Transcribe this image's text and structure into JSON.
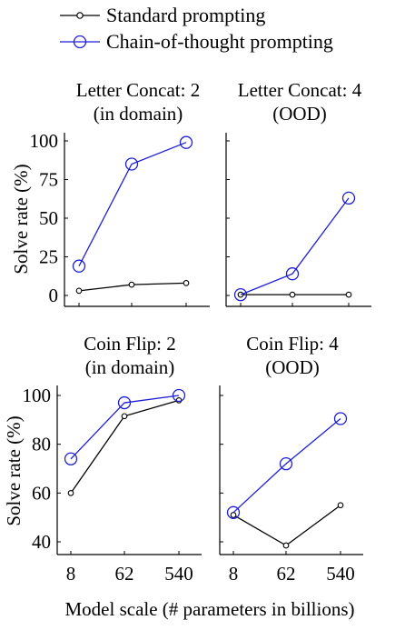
{
  "legend": [
    {
      "label": "Standard prompting",
      "color": "#000000",
      "marker": "small-circle"
    },
    {
      "label": "Chain-of-thought prompting",
      "color": "#1f1fd6",
      "marker": "large-circle"
    }
  ],
  "ylabel_top": "Solve rate (%)",
  "ylabel_bottom": "Solve rate (%)",
  "xlabel": "Model scale (# parameters in billions)",
  "x_tick_labels": [
    "8",
    "62",
    "540"
  ],
  "chart_data": [
    {
      "type": "line",
      "title_lines": [
        "Letter Concat: 2",
        "(in domain)"
      ],
      "categories": [
        "8",
        "62",
        "540"
      ],
      "ylim": [
        0,
        100
      ],
      "yticks": [
        0,
        25,
        50,
        75,
        100
      ],
      "series": [
        {
          "name": "Standard prompting",
          "values": [
            3,
            7,
            8
          ]
        },
        {
          "name": "Chain-of-thought prompting",
          "values": [
            19,
            85,
            99
          ]
        }
      ]
    },
    {
      "type": "line",
      "title_lines": [
        "Letter Concat: 4",
        "(OOD)"
      ],
      "categories": [
        "8",
        "62",
        "540"
      ],
      "ylim": [
        0,
        100
      ],
      "yticks": [],
      "series": [
        {
          "name": "Standard prompting",
          "values": [
            0.5,
            0.5,
            0.5
          ]
        },
        {
          "name": "Chain-of-thought prompting",
          "values": [
            0.5,
            14,
            63
          ]
        }
      ]
    },
    {
      "type": "line",
      "title_lines": [
        "Coin Flip: 2",
        "(in domain)"
      ],
      "categories": [
        "8",
        "62",
        "540"
      ],
      "ylim": [
        35,
        102
      ],
      "yticks": [
        40,
        60,
        80,
        100
      ],
      "series": [
        {
          "name": "Standard prompting",
          "values": [
            60,
            91.5,
            98
          ]
        },
        {
          "name": "Chain-of-thought prompting",
          "values": [
            74,
            97,
            100
          ]
        }
      ]
    },
    {
      "type": "line",
      "title_lines": [
        "Coin Flip: 4",
        "(OOD)"
      ],
      "categories": [
        "8",
        "62",
        "540"
      ],
      "ylim": [
        35,
        102
      ],
      "yticks": [],
      "series": [
        {
          "name": "Standard prompting",
          "values": [
            51,
            38.5,
            55
          ]
        },
        {
          "name": "Chain-of-thought prompting",
          "values": [
            52,
            72,
            90.5
          ]
        }
      ]
    }
  ]
}
